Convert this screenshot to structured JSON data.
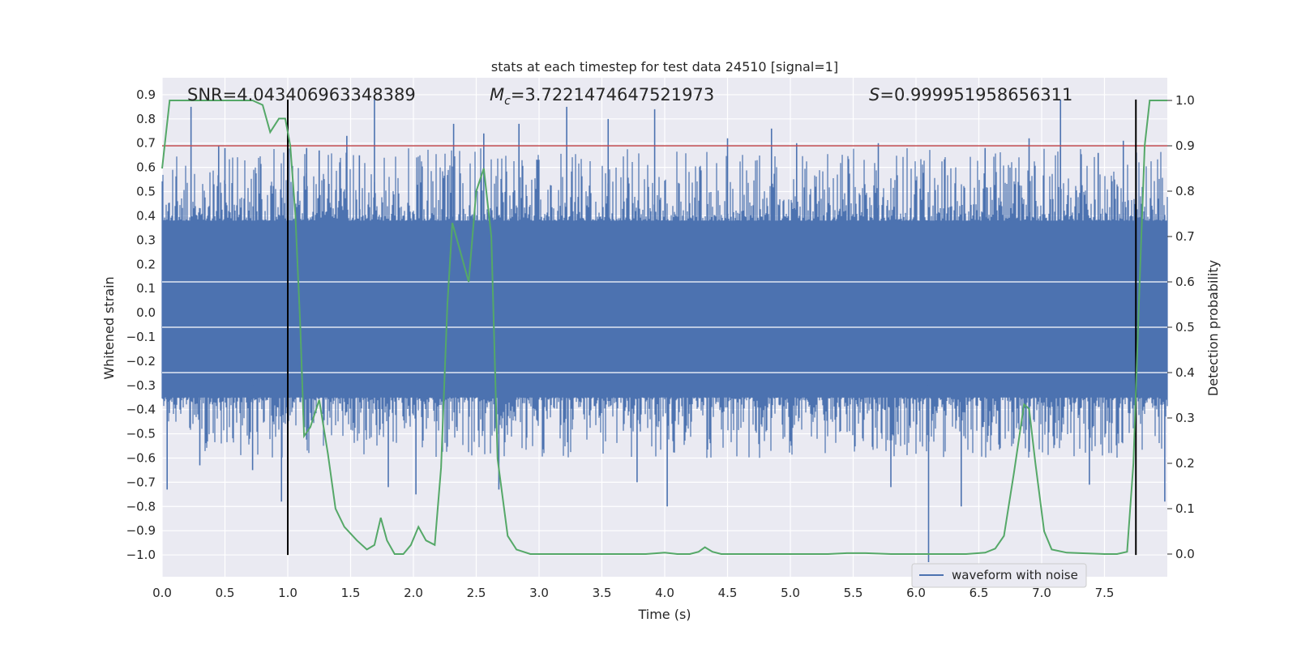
{
  "chart_data": {
    "type": "line",
    "title": "stats at each timestep for test data 24510 [signal=1]",
    "xlabel": "Time (s)",
    "ylabel": "Whitened strain",
    "y2label": "Detection probability",
    "xlim": [
      0.0,
      8.0
    ],
    "ylim": [
      -1.09,
      0.97
    ],
    "y2lim": [
      -0.05,
      1.05
    ],
    "xticks": [
      "0.0",
      "0.5",
      "1.0",
      "1.5",
      "2.0",
      "2.5",
      "3.0",
      "3.5",
      "4.0",
      "4.5",
      "5.0",
      "5.5",
      "6.0",
      "6.5",
      "7.0",
      "7.5"
    ],
    "xtick_values": [
      0.0,
      0.5,
      1.0,
      1.5,
      2.0,
      2.5,
      3.0,
      3.5,
      4.0,
      4.5,
      5.0,
      5.5,
      6.0,
      6.5,
      7.0,
      7.5
    ],
    "yticks": [
      "0.9",
      "0.8",
      "0.7",
      "0.6",
      "0.5",
      "0.4",
      "0.3",
      "0.2",
      "0.1",
      "0.0",
      "−0.1",
      "−0.2",
      "−0.3",
      "−0.4",
      "−0.5",
      "−0.6",
      "−0.7",
      "−0.8",
      "−0.9",
      "−1.0"
    ],
    "ytick_values": [
      0.9,
      0.8,
      0.7,
      0.6,
      0.5,
      0.4,
      0.3,
      0.2,
      0.1,
      0.0,
      -0.1,
      -0.2,
      -0.3,
      -0.4,
      -0.5,
      -0.6,
      -0.7,
      -0.8,
      -0.9,
      -1.0
    ],
    "y2ticks": [
      "1.0",
      "0.9",
      "0.8",
      "0.7",
      "0.6",
      "0.5",
      "0.4",
      "0.3",
      "0.2",
      "0.1",
      "0.0"
    ],
    "y2tick_values": [
      1.0,
      0.9,
      0.8,
      0.7,
      0.6,
      0.5,
      0.4,
      0.3,
      0.2,
      0.1,
      0.0
    ],
    "annotations": {
      "snr": "SNR=4.043406963348389",
      "mc_symbol": "M",
      "mc_sub": "c",
      "mc_value": "=3.7221474647521973",
      "s_symbol": "S",
      "s_value": "=0.999951958656311"
    },
    "legend": {
      "label": "waveform with noise",
      "placement": "lower-right"
    },
    "threshold_line": {
      "value_y2": 0.9,
      "color": "#c44e52"
    },
    "vertical_lines": [
      1.0,
      7.75
    ],
    "vertical_line_range": [
      -1.0,
      0.88
    ],
    "waveform": {
      "name": "waveform with noise",
      "color": "#4c72b0",
      "core_range": [
        -0.35,
        0.38
      ],
      "spikes": [
        {
          "x": 0.04,
          "y": -0.73
        },
        {
          "x": 0.23,
          "y": 0.85
        },
        {
          "x": 0.3,
          "y": -0.63
        },
        {
          "x": 0.45,
          "y": 0.69
        },
        {
          "x": 0.5,
          "y": 0.68
        },
        {
          "x": 0.72,
          "y": -0.65
        },
        {
          "x": 0.95,
          "y": -0.78
        },
        {
          "x": 1.15,
          "y": 0.68
        },
        {
          "x": 1.25,
          "y": 0.67
        },
        {
          "x": 1.47,
          "y": 0.73
        },
        {
          "x": 1.57,
          "y": 0.65
        },
        {
          "x": 1.69,
          "y": 0.88
        },
        {
          "x": 1.8,
          "y": -0.72
        },
        {
          "x": 2.02,
          "y": -0.75
        },
        {
          "x": 2.32,
          "y": 0.78
        },
        {
          "x": 2.56,
          "y": 0.74
        },
        {
          "x": 2.68,
          "y": -0.73
        },
        {
          "x": 2.84,
          "y": 0.78
        },
        {
          "x": 3.22,
          "y": 0.85
        },
        {
          "x": 3.55,
          "y": 0.8
        },
        {
          "x": 3.78,
          "y": -0.7
        },
        {
          "x": 3.92,
          "y": 0.84
        },
        {
          "x": 4.02,
          "y": -0.8
        },
        {
          "x": 4.5,
          "y": 0.72
        },
        {
          "x": 4.85,
          "y": 0.76
        },
        {
          "x": 5.05,
          "y": 0.7
        },
        {
          "x": 5.7,
          "y": 0.7
        },
        {
          "x": 5.8,
          "y": -0.72
        },
        {
          "x": 6.1,
          "y": -1.03
        },
        {
          "x": 6.36,
          "y": -0.8
        },
        {
          "x": 6.55,
          "y": 0.68
        },
        {
          "x": 6.9,
          "y": 0.72
        },
        {
          "x": 7.15,
          "y": 0.88
        },
        {
          "x": 7.38,
          "y": -0.71
        },
        {
          "x": 7.45,
          "y": 0.66
        },
        {
          "x": 7.65,
          "y": 0.71
        },
        {
          "x": 7.98,
          "y": -0.78
        }
      ]
    },
    "detection_probability": {
      "name": "Detection probability",
      "color": "#55a868",
      "points": [
        [
          0.0,
          0.85
        ],
        [
          0.06,
          1.0
        ],
        [
          0.15,
          1.0
        ],
        [
          0.4,
          1.0
        ],
        [
          0.72,
          1.0
        ],
        [
          0.8,
          0.99
        ],
        [
          0.86,
          0.93
        ],
        [
          0.93,
          0.96
        ],
        [
          0.98,
          0.96
        ],
        [
          1.02,
          0.9
        ],
        [
          1.06,
          0.75
        ],
        [
          1.1,
          0.5
        ],
        [
          1.13,
          0.26
        ],
        [
          1.18,
          0.28
        ],
        [
          1.25,
          0.34
        ],
        [
          1.32,
          0.22
        ],
        [
          1.38,
          0.1
        ],
        [
          1.45,
          0.06
        ],
        [
          1.55,
          0.03
        ],
        [
          1.63,
          0.01
        ],
        [
          1.69,
          0.02
        ],
        [
          1.74,
          0.08
        ],
        [
          1.79,
          0.03
        ],
        [
          1.85,
          0.0
        ],
        [
          1.92,
          0.0
        ],
        [
          1.98,
          0.02
        ],
        [
          2.04,
          0.06
        ],
        [
          2.1,
          0.03
        ],
        [
          2.17,
          0.02
        ],
        [
          2.22,
          0.19
        ],
        [
          2.27,
          0.55
        ],
        [
          2.31,
          0.73
        ],
        [
          2.36,
          0.68
        ],
        [
          2.44,
          0.6
        ],
        [
          2.5,
          0.8
        ],
        [
          2.56,
          0.85
        ],
        [
          2.62,
          0.7
        ],
        [
          2.67,
          0.21
        ],
        [
          2.75,
          0.04
        ],
        [
          2.82,
          0.01
        ],
        [
          2.93,
          0.0
        ],
        [
          3.5,
          0.0
        ],
        [
          3.85,
          0.0
        ],
        [
          4.0,
          0.003
        ],
        [
          4.1,
          0.0
        ],
        [
          4.2,
          0.0
        ],
        [
          4.27,
          0.005
        ],
        [
          4.32,
          0.015
        ],
        [
          4.38,
          0.005
        ],
        [
          4.45,
          0.0
        ],
        [
          4.8,
          0.0
        ],
        [
          5.3,
          0.0
        ],
        [
          5.45,
          0.002
        ],
        [
          5.6,
          0.002
        ],
        [
          5.8,
          0.0
        ],
        [
          6.4,
          0.0
        ],
        [
          6.55,
          0.003
        ],
        [
          6.63,
          0.012
        ],
        [
          6.7,
          0.04
        ],
        [
          6.78,
          0.18
        ],
        [
          6.86,
          0.33
        ],
        [
          6.9,
          0.32
        ],
        [
          6.95,
          0.2
        ],
        [
          7.02,
          0.05
        ],
        [
          7.08,
          0.01
        ],
        [
          7.2,
          0.003
        ],
        [
          7.5,
          0.0
        ],
        [
          7.6,
          0.0
        ],
        [
          7.68,
          0.005
        ],
        [
          7.73,
          0.2
        ],
        [
          7.78,
          0.6
        ],
        [
          7.82,
          0.9
        ],
        [
          7.86,
          1.0
        ],
        [
          8.0,
          1.0
        ]
      ]
    },
    "colors": {
      "background": "#eaeaf2",
      "grid": "#ffffff",
      "waveform": "#4c72b0",
      "probability": "#55a868",
      "threshold": "#c44e52",
      "vlines": "#000000",
      "text": "#262626"
    }
  }
}
